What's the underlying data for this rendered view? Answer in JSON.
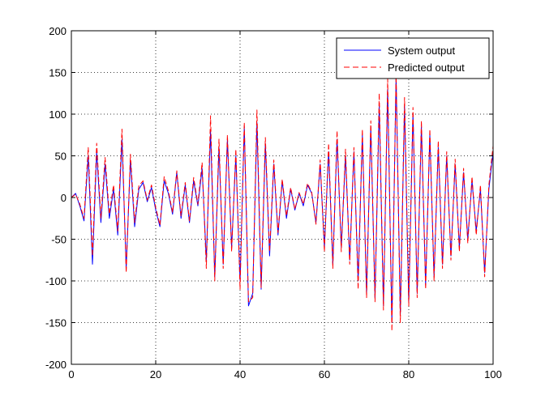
{
  "chart_data": {
    "type": "line",
    "title": "",
    "xlabel": "",
    "ylabel": "",
    "xlim": [
      0,
      100
    ],
    "ylim": [
      -200,
      200
    ],
    "x_ticks": [
      0,
      20,
      40,
      60,
      80,
      100
    ],
    "y_ticks": [
      -200,
      -150,
      -100,
      -50,
      0,
      50,
      100,
      150,
      200
    ],
    "x_tick_labels": [
      "0",
      "20",
      "40",
      "60",
      "80",
      "100"
    ],
    "y_tick_labels": [
      "-200",
      "-150",
      "-100",
      "-50",
      "0",
      "50",
      "100",
      "150",
      "200"
    ],
    "grid": true,
    "legend": {
      "position": "top-right"
    },
    "series": [
      {
        "name": "System output",
        "color": "#0000ff",
        "style": "solid",
        "x": [
          0,
          1,
          2,
          3,
          4,
          5,
          6,
          7,
          8,
          9,
          10,
          11,
          12,
          13,
          14,
          15,
          16,
          17,
          18,
          19,
          20,
          21,
          22,
          23,
          24,
          25,
          26,
          27,
          28,
          29,
          30,
          31,
          32,
          33,
          34,
          35,
          36,
          37,
          38,
          39,
          40,
          41,
          42,
          43,
          44,
          45,
          46,
          47,
          48,
          49,
          50,
          51,
          52,
          53,
          54,
          55,
          56,
          57,
          58,
          59,
          60,
          61,
          62,
          63,
          64,
          65,
          66,
          67,
          68,
          69,
          70,
          71,
          72,
          73,
          74,
          75,
          76,
          77,
          78,
          79,
          80,
          81,
          82,
          83,
          84,
          85,
          86,
          87,
          88,
          89,
          90,
          91,
          92,
          93,
          94,
          95,
          96,
          97,
          98,
          99,
          100
        ],
        "y": [
          0,
          5,
          -10,
          -28,
          50,
          -80,
          55,
          -30,
          40,
          -25,
          10,
          -45,
          70,
          -85,
          45,
          -35,
          10,
          18,
          -5,
          12,
          -15,
          -35,
          20,
          5,
          -20,
          30,
          -25,
          15,
          -30,
          20,
          -10,
          35,
          -75,
          80,
          -95,
          60,
          -80,
          70,
          -60,
          50,
          -100,
          85,
          -130,
          -115,
          90,
          -110,
          65,
          -70,
          40,
          -45,
          20,
          -25,
          10,
          -15,
          5,
          -10,
          15,
          5,
          -30,
          40,
          -60,
          55,
          -80,
          70,
          -60,
          50,
          -75,
          55,
          -100,
          75,
          -115,
          85,
          -120,
          110,
          -130,
          130,
          -150,
          145,
          -140,
          110,
          -125,
          100,
          -115,
          85,
          -105,
          75,
          -95,
          60,
          -80,
          50,
          -70,
          40,
          -60,
          30,
          -50,
          20,
          -40,
          10,
          -90,
          10,
          55
        ]
      },
      {
        "name": "Predicted output",
        "color": "#ff0000",
        "style": "dashed",
        "x": [
          0,
          1,
          2,
          3,
          4,
          5,
          6,
          7,
          8,
          9,
          10,
          11,
          12,
          13,
          14,
          15,
          16,
          17,
          18,
          19,
          20,
          21,
          22,
          23,
          24,
          25,
          26,
          27,
          28,
          29,
          30,
          31,
          32,
          33,
          34,
          35,
          36,
          37,
          38,
          39,
          40,
          41,
          42,
          43,
          44,
          45,
          46,
          47,
          48,
          49,
          50,
          51,
          52,
          53,
          54,
          55,
          56,
          57,
          58,
          59,
          60,
          61,
          62,
          63,
          64,
          65,
          66,
          67,
          68,
          69,
          70,
          71,
          72,
          73,
          74,
          75,
          76,
          77,
          78,
          79,
          80,
          81,
          82,
          83,
          84,
          85,
          86,
          87,
          88,
          89,
          90,
          91,
          92,
          93,
          94,
          95,
          96,
          97,
          98,
          99,
          100
        ],
        "y": [
          0,
          4,
          -8,
          -25,
          60,
          -70,
          65,
          -25,
          48,
          -20,
          15,
          -40,
          82,
          -90,
          52,
          -30,
          14,
          20,
          -3,
          15,
          -12,
          -33,
          25,
          8,
          -18,
          32,
          -22,
          18,
          -28,
          24,
          -8,
          42,
          -85,
          98,
          -100,
          70,
          -85,
          75,
          -65,
          58,
          -110,
          90,
          -125,
          -120,
          105,
          -108,
          72,
          -65,
          45,
          -42,
          22,
          -22,
          12,
          -14,
          6,
          -8,
          17,
          6,
          -32,
          45,
          -65,
          65,
          -85,
          80,
          -65,
          58,
          -80,
          60,
          -110,
          82,
          -120,
          92,
          -125,
          125,
          -135,
          142,
          -160,
          150,
          -150,
          120,
          -130,
          108,
          -120,
          92,
          -110,
          82,
          -100,
          68,
          -85,
          55,
          -75,
          46,
          -65,
          35,
          -55,
          25,
          -45,
          15,
          -95,
          15,
          62
        ]
      }
    ]
  }
}
